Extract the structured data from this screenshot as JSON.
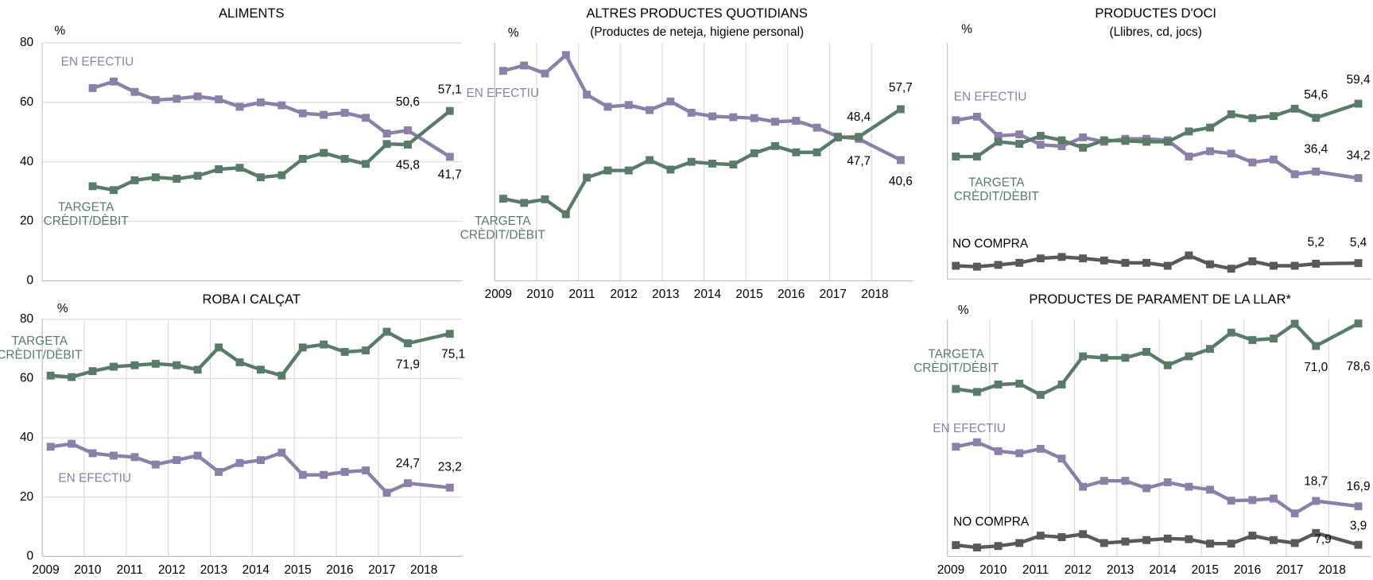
{
  "chart_data": [
    {
      "type": "line",
      "title": "ALIMENTS",
      "y_unit": "%",
      "x": [
        2010.2,
        2010.7,
        2011.2,
        2011.7,
        2012.2,
        2012.7,
        2013.2,
        2013.7,
        2014.2,
        2014.7,
        2015.2,
        2015.7,
        2016.2,
        2016.7,
        2017.2,
        2017.7,
        2018.7
      ],
      "xlim": [
        2009,
        2019
      ],
      "ylim": [
        0,
        80
      ],
      "yticks": [
        0,
        20,
        40,
        60,
        80
      ],
      "grid": true,
      "series": [
        {
          "name": "EN EFECTIU",
          "color": "#8c7fa8",
          "values": [
            64.8,
            67,
            63.5,
            60.8,
            61.2,
            62,
            61,
            58.5,
            60,
            59,
            56.3,
            55.8,
            56.5,
            54.8,
            49.5,
            50.6,
            41.7
          ],
          "value_labels": [
            null,
            null,
            null,
            null,
            null,
            null,
            null,
            null,
            null,
            null,
            null,
            null,
            null,
            null,
            null,
            "50,6",
            "41,7"
          ]
        },
        {
          "name": "TARGETA CRÈDIT/DÈBIT",
          "color": "#5a7b68",
          "values": [
            31.8,
            30.5,
            33.8,
            34.8,
            34.3,
            35.3,
            37.5,
            38,
            34.8,
            35.5,
            41,
            43,
            41,
            39.3,
            46,
            45.8,
            57.1
          ],
          "value_labels": [
            null,
            null,
            null,
            null,
            null,
            null,
            null,
            null,
            null,
            null,
            null,
            null,
            null,
            null,
            null,
            "45,8",
            "57,1"
          ]
        }
      ]
    },
    {
      "type": "line",
      "title": "ALTRES PRODUCTES QUOTIDIANS",
      "subtitle": "(Productes de neteja, higiene personal)",
      "y_unit": "%",
      "x": [
        2009.2,
        2009.7,
        2010.2,
        2010.7,
        2011.2,
        2011.7,
        2012.2,
        2012.7,
        2013.2,
        2013.7,
        2014.2,
        2014.7,
        2015.2,
        2015.7,
        2016.2,
        2016.7,
        2017.2,
        2017.7,
        2018.7
      ],
      "xlim": [
        2009,
        2019
      ],
      "xticks": [
        2009,
        2010,
        2011,
        2012,
        2013,
        2014,
        2015,
        2016,
        2017,
        2018
      ],
      "ylim": [
        0,
        80
      ],
      "grid": true,
      "series": [
        {
          "name": "EN EFECTIU",
          "color": "#8c7fa8",
          "values": [
            70.6,
            72.4,
            69.7,
            75.9,
            62.6,
            58.5,
            59.1,
            57.4,
            60.3,
            56.5,
            55.3,
            55,
            54.7,
            53.5,
            53.8,
            51.5,
            48.5,
            47.7,
            40.6
          ],
          "value_labels": [
            null,
            null,
            null,
            null,
            null,
            null,
            null,
            null,
            null,
            null,
            null,
            null,
            null,
            null,
            null,
            null,
            null,
            "47,7",
            "40,6"
          ]
        },
        {
          "name": "TARGETA CRÈDIT/DÈBIT",
          "color": "#5a7b68",
          "values": [
            27.6,
            26.2,
            27.4,
            22.4,
            34.7,
            37.1,
            37.1,
            40.6,
            37.4,
            40,
            39.4,
            39.1,
            42.9,
            45.3,
            43.2,
            43.2,
            48.2,
            48.4,
            57.7
          ],
          "value_labels": [
            null,
            null,
            null,
            null,
            null,
            null,
            null,
            null,
            null,
            null,
            null,
            null,
            null,
            null,
            null,
            null,
            null,
            "48,4",
            "57,7"
          ]
        }
      ]
    },
    {
      "type": "line",
      "title": "PRODUCTES D'OCI",
      "subtitle": "(Llibres, cd, jocs)",
      "y_unit": "%",
      "x": [
        2009.2,
        2009.7,
        2010.2,
        2010.7,
        2011.2,
        2011.7,
        2012.2,
        2012.7,
        2013.2,
        2013.7,
        2014.2,
        2014.7,
        2015.2,
        2015.7,
        2016.2,
        2016.7,
        2017.2,
        2017.7,
        2018.7
      ],
      "xlim": [
        2009,
        2019
      ],
      "ylim": [
        0,
        80
      ],
      "grid": true,
      "series": [
        {
          "name": "EN EFECTIU",
          "color": "#8c7fa8",
          "values": [
            53.8,
            55,
            48.5,
            49,
            45.5,
            45,
            48,
            46.5,
            47.5,
            47.5,
            47,
            41.5,
            43.3,
            42.5,
            39.5,
            40.5,
            35.5,
            36.4,
            34.2
          ],
          "value_labels": [
            null,
            null,
            null,
            null,
            null,
            null,
            null,
            null,
            null,
            null,
            null,
            null,
            null,
            null,
            null,
            null,
            null,
            "36,4",
            "34,2"
          ]
        },
        {
          "name": "TARGETA CRÈDIT/DÈBIT",
          "color": "#5a7b68",
          "values": [
            41.5,
            41.5,
            46.5,
            45.8,
            48.5,
            47,
            44.5,
            47,
            46.8,
            46.5,
            46.5,
            50,
            51.3,
            55.8,
            54.5,
            55.2,
            57.7,
            54.6,
            59.4
          ],
          "value_labels": [
            null,
            null,
            null,
            null,
            null,
            null,
            null,
            null,
            null,
            null,
            null,
            null,
            null,
            null,
            null,
            null,
            null,
            "54,6",
            "59,4"
          ]
        },
        {
          "name": "NO COMPRA",
          "color": "#595959",
          "values": [
            4.5,
            4.2,
            4.8,
            5.5,
            7,
            7.5,
            7,
            6.3,
            5.5,
            5.5,
            4.5,
            8,
            5,
            3.5,
            6,
            4.5,
            4.5,
            5.2,
            5.4
          ],
          "value_labels": [
            null,
            null,
            null,
            null,
            null,
            null,
            null,
            null,
            null,
            null,
            null,
            null,
            null,
            null,
            null,
            null,
            null,
            "5,2",
            "5,4"
          ]
        }
      ]
    },
    {
      "type": "line",
      "title": "ROBA I CALÇAT",
      "y_unit": "%",
      "x": [
        2009.2,
        2009.7,
        2010.2,
        2010.7,
        2011.2,
        2011.7,
        2012.2,
        2012.7,
        2013.2,
        2013.7,
        2014.2,
        2014.7,
        2015.2,
        2015.7,
        2016.2,
        2016.7,
        2017.2,
        2017.7,
        2018.7
      ],
      "xlim": [
        2009,
        2019
      ],
      "xticks": [
        2009,
        2010,
        2011,
        2012,
        2013,
        2014,
        2015,
        2016,
        2017,
        2018
      ],
      "ylim": [
        0,
        80
      ],
      "yticks": [
        0,
        20,
        40,
        60,
        80
      ],
      "grid": true,
      "series": [
        {
          "name": "TARGETA CRÈDIT/DÈBIT",
          "color": "#5a7b68",
          "values": [
            61,
            60.5,
            62.5,
            64,
            64.5,
            65,
            64.5,
            63,
            70.5,
            65.5,
            63,
            61,
            70.5,
            71.5,
            69,
            69.5,
            75.8,
            71.9,
            75.1
          ],
          "value_labels": [
            null,
            null,
            null,
            null,
            null,
            null,
            null,
            null,
            null,
            null,
            null,
            null,
            null,
            null,
            null,
            null,
            null,
            "71,9",
            "75,1"
          ]
        },
        {
          "name": "EN EFECTIU",
          "color": "#8c7fa8",
          "values": [
            37,
            38,
            34.8,
            34,
            33.5,
            31,
            32.5,
            34,
            28.5,
            31.5,
            32.5,
            35,
            27.5,
            27.5,
            28.5,
            29,
            21.5,
            24.7,
            23.2
          ],
          "value_labels": [
            null,
            null,
            null,
            null,
            null,
            null,
            null,
            null,
            null,
            null,
            null,
            null,
            null,
            null,
            null,
            null,
            null,
            "24,7",
            "23,2"
          ]
        }
      ]
    },
    {
      "type": "line",
      "title": "PRODUCTES DE PARAMENT DE LA LLAR*",
      "y_unit": "%",
      "x": [
        2009.2,
        2009.7,
        2010.2,
        2010.7,
        2011.2,
        2011.7,
        2012.2,
        2012.7,
        2013.2,
        2013.7,
        2014.2,
        2014.7,
        2015.2,
        2015.7,
        2016.2,
        2016.7,
        2017.2,
        2017.7,
        2018.7
      ],
      "xlim": [
        2009,
        2019
      ],
      "xticks": [
        2009,
        2010,
        2011,
        2012,
        2013,
        2014,
        2015,
        2016,
        2017,
        2018
      ],
      "ylim": [
        0,
        80
      ],
      "grid": true,
      "series": [
        {
          "name": "TARGETA CRÈDIT/DÈBIT",
          "color": "#5a7b68",
          "values": [
            56.5,
            55.5,
            58,
            58.3,
            54.5,
            58,
            67.5,
            67,
            67,
            69,
            64.5,
            67.5,
            70,
            75.5,
            73,
            73.5,
            78.5,
            71,
            78.6
          ],
          "value_labels": [
            null,
            null,
            null,
            null,
            null,
            null,
            null,
            null,
            null,
            null,
            null,
            null,
            null,
            null,
            null,
            null,
            null,
            "71,0",
            "78,6"
          ]
        },
        {
          "name": "EN EFECTIU",
          "color": "#8c7fa8",
          "values": [
            37,
            38.5,
            35.5,
            34.8,
            36.3,
            33,
            23.5,
            25.5,
            25.5,
            23,
            25,
            23.5,
            22.5,
            18.8,
            19,
            19.5,
            14.5,
            18.7,
            16.9
          ],
          "value_labels": [
            null,
            null,
            null,
            null,
            null,
            null,
            null,
            null,
            null,
            null,
            null,
            null,
            null,
            null,
            null,
            null,
            null,
            "18,7",
            "16,9"
          ]
        },
        {
          "name": "NO COMPRA",
          "color": "#595959",
          "values": [
            3.8,
            3,
            3.5,
            4.5,
            7,
            6.5,
            7.5,
            4.5,
            5,
            5.5,
            6,
            5.8,
            4.3,
            4.3,
            7,
            5.5,
            4.5,
            7.9,
            3.9
          ],
          "value_labels": [
            null,
            null,
            null,
            null,
            null,
            null,
            null,
            null,
            null,
            null,
            null,
            null,
            null,
            null,
            null,
            null,
            null,
            "7,9",
            "3,9"
          ]
        }
      ]
    }
  ]
}
